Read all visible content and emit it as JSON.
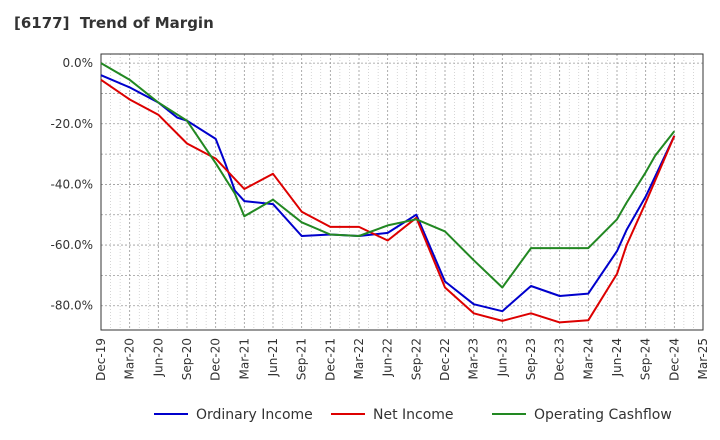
{
  "chart_data": {
    "type": "line",
    "title": "[6177]  Trend of Margin",
    "xlabel": "",
    "ylabel": "",
    "x_ticks": [
      "Dec-19",
      "Mar-20",
      "Jun-20",
      "Sep-20",
      "Dec-20",
      "Mar-21",
      "Jun-21",
      "Sep-21",
      "Dec-21",
      "Mar-22",
      "Jun-22",
      "Sep-22",
      "Dec-22",
      "Mar-23",
      "Jun-23",
      "Sep-23",
      "Dec-23",
      "Mar-24",
      "Jun-24",
      "Sep-24",
      "Dec-24",
      "Mar-25"
    ],
    "y_ticks": [
      "0.0%",
      "-20.0%",
      "-40.0%",
      "-60.0%",
      "-80.0%"
    ],
    "y_tick_values": [
      0,
      -20,
      -40,
      -60,
      -80
    ],
    "ylim": [
      -88,
      3
    ],
    "x_range_months": [
      0,
      63
    ],
    "grid": true,
    "legend_position": "bottom",
    "series": [
      {
        "name": "Ordinary Income",
        "color": "#0000cc",
        "x": [
          0,
          3,
          6,
          8,
          9,
          12,
          13,
          14,
          15,
          18,
          21,
          24,
          27,
          30,
          33,
          36,
          39,
          42,
          45,
          48,
          51,
          54,
          55,
          57,
          60
        ],
        "values": [
          -4,
          -8,
          -13,
          -18,
          -19,
          -25,
          -33,
          -42,
          -45.5,
          -46.5,
          -57,
          -56.5,
          -57,
          -56,
          -50,
          -72,
          -79.5,
          -81.8,
          -73.5,
          -76.8,
          -76,
          -62,
          -55,
          -44,
          -24
        ]
      },
      {
        "name": "Net Income",
        "color": "#dd0000",
        "x": [
          0,
          3,
          6,
          9,
          12,
          15,
          18,
          21,
          24,
          27,
          30,
          33,
          36,
          39,
          42,
          45,
          48,
          51,
          54,
          55,
          57,
          60
        ],
        "values": [
          -5.5,
          -12,
          -17,
          -26.5,
          -31.5,
          -41.5,
          -36.5,
          -49,
          -54,
          -54,
          -58.5,
          -51,
          -74,
          -82.5,
          -85,
          -82.5,
          -85.5,
          -84.8,
          -69.5,
          -60,
          -46,
          -24
        ]
      },
      {
        "name": "Operating Cashflow",
        "color": "#228822",
        "x": [
          0,
          3,
          6,
          9,
          12,
          14,
          15,
          18,
          21,
          24,
          27,
          30,
          33,
          36,
          39,
          42,
          45,
          48,
          51,
          54,
          55,
          57,
          58,
          60
        ],
        "values": [
          0,
          -5.5,
          -13,
          -19,
          -33,
          -43,
          -50.5,
          -45,
          -52.5,
          -56.5,
          -57,
          -53.5,
          -51.5,
          -55.5,
          -65,
          -74,
          -61,
          -61,
          -61,
          -51.5,
          -46,
          -36,
          -30.5,
          -22.5
        ]
      }
    ]
  }
}
